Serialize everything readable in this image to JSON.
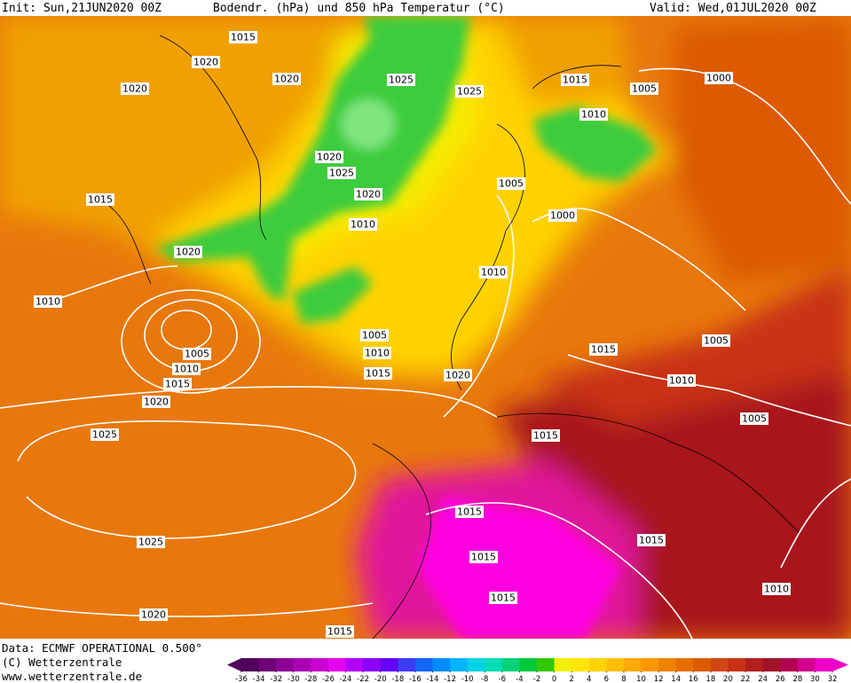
{
  "header": {
    "init": "Init: Sun,21JUN2020 00Z",
    "title": "Bodendr. (hPa) und 850 hPa Temperatur (°C)",
    "valid": "Valid: Wed,01JUL2020 00Z"
  },
  "map": {
    "isobar_labels": [
      1015,
      1020,
      1020,
      1020,
      1025,
      1025,
      1015,
      1005,
      1000,
      1010,
      1020,
      1025,
      1020,
      1005,
      1015,
      1000,
      1010,
      1020,
      1010,
      1010,
      1005,
      1005,
      1005,
      1010,
      1015,
      1010,
      1015,
      1020,
      1015,
      1010,
      1020,
      1005,
      1015,
      1025,
      1015,
      1015,
      1025,
      1015,
      1015,
      1010,
      1020,
      1015
    ]
  },
  "footer": {
    "data": "Data: ECMWF OPERATIONAL 0.500°",
    "copyright": "(C) Wetterzentrale",
    "url": "www.wetterzentrale.de"
  },
  "colorbar": {
    "ticks": [
      -36,
      -34,
      -32,
      -30,
      -28,
      -26,
      -24,
      -22,
      -20,
      -18,
      -16,
      -14,
      -12,
      -10,
      -8,
      -6,
      -4,
      -2,
      0,
      2,
      4,
      6,
      8,
      10,
      12,
      14,
      16,
      18,
      20,
      22,
      24,
      26,
      28,
      30,
      32
    ],
    "colors": [
      "#50005a",
      "#6e0078",
      "#8c0096",
      "#aa00b4",
      "#c800d2",
      "#e600f0",
      "#b400ff",
      "#8c00ff",
      "#6400ff",
      "#3c3cff",
      "#1464ff",
      "#008cff",
      "#00b4ff",
      "#00d2e6",
      "#00dcb4",
      "#00d278",
      "#00c83c",
      "#32c800",
      "#f0f000",
      "#ffe600",
      "#ffd200",
      "#ffbe00",
      "#ffaa00",
      "#ff9600",
      "#f08200",
      "#e66e00",
      "#dc5a00",
      "#d24614",
      "#c83214",
      "#b41e1e",
      "#a01428",
      "#b40050",
      "#d2008c",
      "#f000c8"
    ]
  }
}
